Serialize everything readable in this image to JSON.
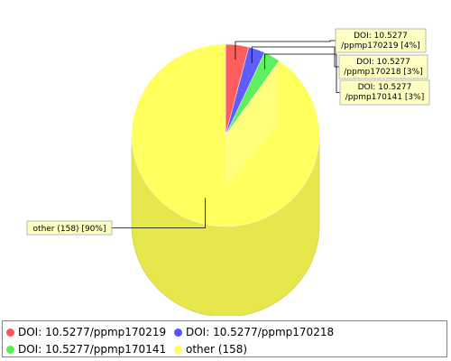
{
  "chart_data": {
    "type": "pie",
    "style": "3d-cylinder",
    "slices": [
      {
        "label": "DOI: 10.5277/ppmp170219",
        "value": 7,
        "percent_label": "4%",
        "color": "#ff5555"
      },
      {
        "label": "DOI: 10.5277/ppmp170218",
        "value": 5,
        "percent_label": "3%",
        "color": "#5555ff"
      },
      {
        "label": "DOI: 10.5277/ppmp170141",
        "value": 5,
        "percent_label": "3%",
        "color": "#55ee55"
      },
      {
        "label": "other (158)",
        "value": 158,
        "percent_label": "90%",
        "color": "#ffff55"
      }
    ],
    "callouts": [
      {
        "line1": "DOI: 10.5277",
        "line2": "/ppmp170219 [4%]"
      },
      {
        "line1": "DOI: 10.5277",
        "line2": "/ppmp170218 [3%]"
      },
      {
        "line1": "DOI: 10.5277",
        "line2": "/ppmp170141 [3%]"
      },
      {
        "line1": "other (158) [90%]",
        "line2": ""
      }
    ],
    "legend": [
      "DOI: 10.5277/ppmp170219",
      "DOI: 10.5277/ppmp170218",
      "DOI: 10.5277/ppmp170141",
      "other (158)"
    ],
    "legend_position": "bottom"
  }
}
